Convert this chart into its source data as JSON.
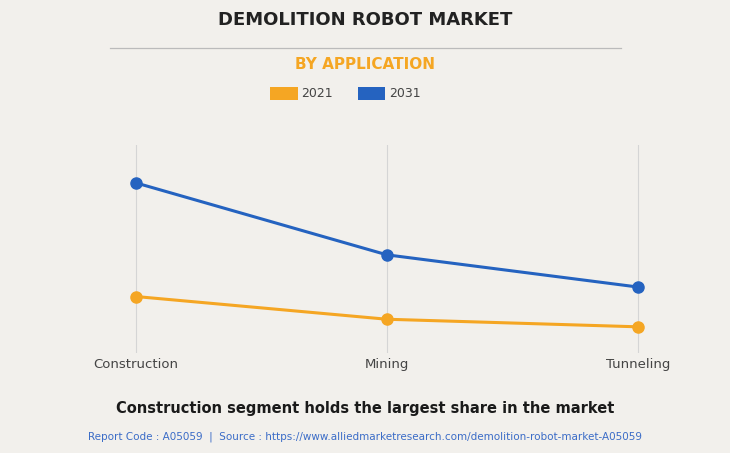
{
  "title": "DEMOLITION ROBOT MARKET",
  "subtitle": "BY APPLICATION",
  "categories": [
    "Construction",
    "Mining",
    "Tunneling"
  ],
  "series": [
    {
      "label": "2021",
      "color": "#F5A623",
      "values": [
        30,
        18,
        14
      ]
    },
    {
      "label": "2031",
      "color": "#2563C0",
      "values": [
        90,
        52,
        35
      ]
    }
  ],
  "ylim": [
    0,
    110
  ],
  "background_color": "#F2F0EC",
  "plot_bg_color": "#F2F0EC",
  "grid_color": "#D5D5D5",
  "title_fontsize": 13,
  "subtitle_fontsize": 11,
  "subtitle_color": "#F5A623",
  "footer_text": "Construction segment holds the largest share in the market",
  "source_text": "Report Code : A05059  |  Source : https://www.alliedmarketresearch.com/demolition-robot-market-A05059",
  "source_color": "#3B6CC7",
  "footer_fontsize": 10.5,
  "source_fontsize": 7.5,
  "marker_size": 8,
  "line_width": 2.2
}
